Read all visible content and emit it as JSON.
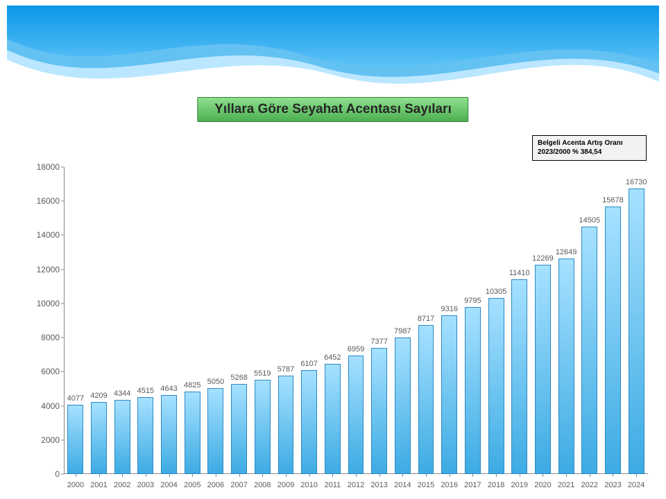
{
  "header": {
    "wave_gradient_top": "#0a96e8",
    "wave_gradient_bottom": "#5dc3f7",
    "wave_light": "#aee3ff",
    "wave_mid": "#5bbef2"
  },
  "title": {
    "text": "Yıllara Göre Seyahat Acentası Sayıları",
    "bg_top": "#8fe08f",
    "bg_bottom": "#4caf50",
    "border": "#2e7d32",
    "color": "#262626",
    "fontsize": 19
  },
  "info_box": {
    "line1": "Belgeli Acenta Artış Oranı",
    "line2": "2023/2000 % 384,54",
    "bg": "#f2f2f2",
    "border": "#000000",
    "fontsize": 10
  },
  "chart": {
    "type": "bar",
    "categories": [
      "2000",
      "2001",
      "2002",
      "2003",
      "2004",
      "2005",
      "2006",
      "2007",
      "2008",
      "2009",
      "2010",
      "2011",
      "2012",
      "2013",
      "2014",
      "2015",
      "2016",
      "2017",
      "2018",
      "2019",
      "2020",
      "2021",
      "2022",
      "2023",
      "2024"
    ],
    "values": [
      4077,
      4209,
      4344,
      4515,
      4643,
      4825,
      5050,
      5268,
      5519,
      5787,
      6107,
      6452,
      6959,
      7377,
      7987,
      8717,
      9316,
      9795,
      10305,
      11410,
      12269,
      12649,
      14505,
      15678,
      16730
    ],
    "ylim": [
      0,
      18000
    ],
    "ytick_step": 2000,
    "yticks": [
      0,
      2000,
      4000,
      6000,
      8000,
      10000,
      12000,
      14000,
      16000,
      18000
    ],
    "bar_fill_top": "#a6e1ff",
    "bar_fill_bottom": "#3dabe3",
    "bar_border": "#2b88c4",
    "axis_color": "#888888",
    "tick_font_color": "#595959",
    "tick_fontsize": 12,
    "xlabel_fontsize": 11,
    "value_label_fontsize": 11,
    "value_label_color": "#595959",
    "bar_width_ratio": 0.68,
    "background": "#ffffff"
  }
}
